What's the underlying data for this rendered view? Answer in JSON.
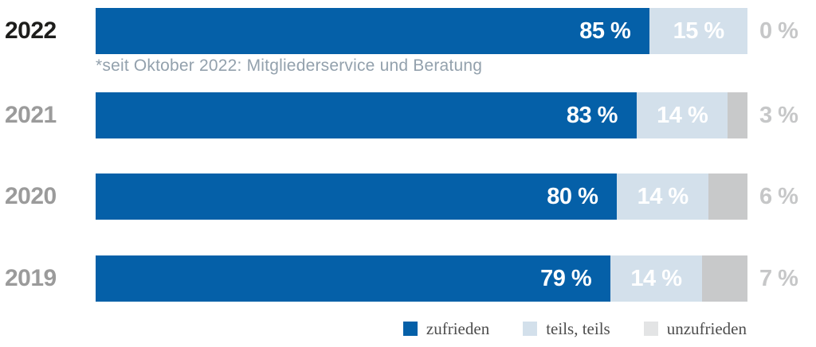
{
  "chart_data": {
    "type": "bar",
    "orientation": "horizontal",
    "stacked": true,
    "title": "",
    "xlabel": "",
    "ylabel": "",
    "xlim": [
      0,
      100
    ],
    "grid": false,
    "legend_position": "bottom-right",
    "value_suffix": " %",
    "categories": [
      "2022",
      "2021",
      "2020",
      "2019"
    ],
    "series": [
      {
        "name": "zufrieden",
        "color": "#0560a8",
        "values": [
          85,
          83,
          80,
          79
        ]
      },
      {
        "name": "teils, teils",
        "color": "#d3e0eb",
        "values": [
          15,
          14,
          14,
          14
        ]
      },
      {
        "name": "unzufrieden",
        "color": "#c8c9ca",
        "values": [
          0,
          3,
          6,
          7
        ]
      }
    ],
    "annotations": [
      "*seit Oktober 2022: Mitgliederservice und Beratung"
    ]
  },
  "footnote": {
    "text": "*seit Oktober 2022: Mitgliederservice und Beratung"
  },
  "legend": {
    "items": [
      {
        "label": "zufrieden",
        "swatch": "#0560a8"
      },
      {
        "label": "teils, teils",
        "swatch": "#d3e0eb"
      },
      {
        "label": "unzufrieden",
        "swatch": "#e3e4e5"
      }
    ]
  },
  "colors": {
    "background": "#ffffff",
    "year_current": "#1d1d1b",
    "year_past": "#9b9b9b",
    "bar_label_text": "#ffffff",
    "outside_label": "#c6c7c8",
    "footnote": "#93a1ad",
    "legend_text": "#4d4d4d"
  }
}
